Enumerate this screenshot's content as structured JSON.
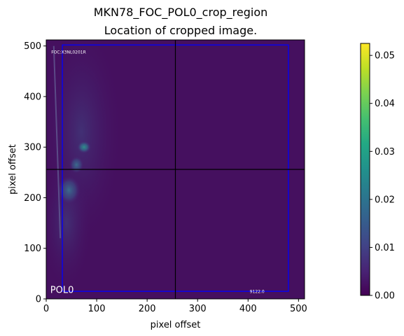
{
  "chart_data": {
    "type": "heatmap",
    "title": "MKN78_FOC_POL0_crop_region",
    "subtitle": "Location of cropped image.",
    "xlabel": "pixel offset",
    "ylabel": "pixel offset",
    "xlim": [
      0,
      512
    ],
    "ylim": [
      0,
      512
    ],
    "xticks": [
      0,
      100,
      200,
      300,
      400,
      500
    ],
    "yticks": [
      0,
      100,
      200,
      300,
      400,
      500
    ],
    "colorbar": {
      "colormap": "viridis",
      "range": [
        0,
        0.0525
      ],
      "ticks": [
        "0.00",
        "0.01",
        "0.02",
        "0.03",
        "0.04",
        "0.05"
      ],
      "tick_values": [
        0,
        0.01,
        0.02,
        0.03,
        0.04,
        0.05
      ]
    },
    "crosshair": {
      "x": 256,
      "y": 256,
      "color": "#000000"
    },
    "crop_box": {
      "x0": 32,
      "y0": 15,
      "x1": 480,
      "y1": 502,
      "color": "#0000ff"
    },
    "hot_spots": [
      {
        "x": 75,
        "y": 300,
        "value": 0.028
      },
      {
        "x": 45,
        "y": 215,
        "value": 0.02
      },
      {
        "x": 60,
        "y": 265,
        "value": 0.012
      }
    ],
    "annotations": {
      "filter_label": "POL0",
      "header_text": "FOC:X3NL0201R",
      "exposure_text": "9122.0"
    }
  }
}
